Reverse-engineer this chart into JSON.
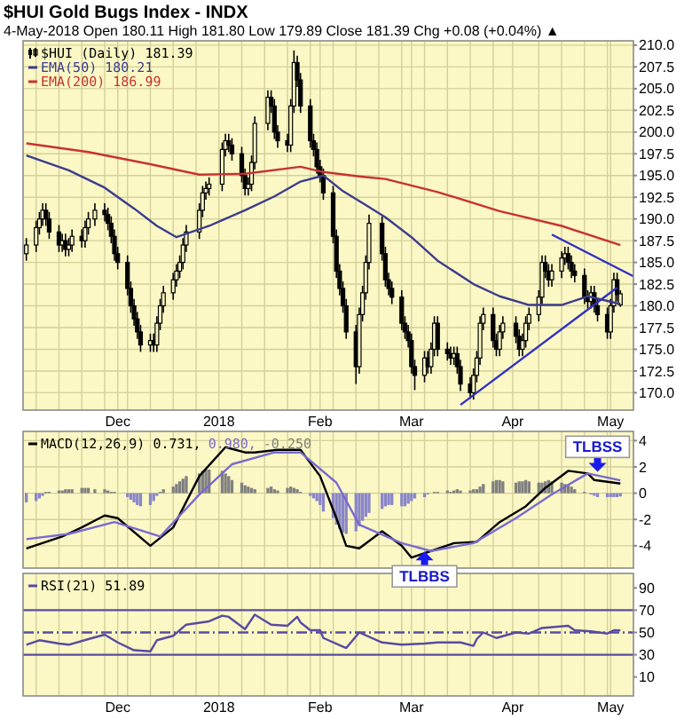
{
  "chart_data": [
    {
      "type": "candlestick",
      "title": "$HUI Gold Bugs Index - INDX",
      "subtitle": "4-May-2018  Open 180.11  High 181.80  Low 179.89  Close 181.39  Chg +0.08 (+0.04%) ▲",
      "grid": true,
      "legend": "top left",
      "xlim": [
        "2017-11-02",
        "2018-05-08"
      ],
      "ylim": [
        168,
        210.5
      ],
      "xticks": [
        {
          "value": "2017-11-06",
          "label": null
        },
        {
          "value": "2017-11-13",
          "label": null
        },
        {
          "value": "2017-11-20",
          "label": null
        },
        {
          "value": "2017-11-27",
          "label": null
        },
        {
          "value": "2017-12-01",
          "label": "Dec"
        },
        {
          "value": "2017-12-04",
          "label": null
        },
        {
          "value": "2017-12-11",
          "label": null
        },
        {
          "value": "2017-12-18",
          "label": null
        },
        {
          "value": "2017-12-25",
          "label": null
        },
        {
          "value": "2018-01-01",
          "label": "2018"
        },
        {
          "value": "2018-01-08",
          "label": null
        },
        {
          "value": "2018-01-15",
          "label": null
        },
        {
          "value": "2018-01-22",
          "label": null
        },
        {
          "value": "2018-01-29",
          "label": null
        },
        {
          "value": "2018-02-01",
          "label": "Feb"
        },
        {
          "value": "2018-02-05",
          "label": null
        },
        {
          "value": "2018-02-12",
          "label": null
        },
        {
          "value": "2018-02-19",
          "label": null
        },
        {
          "value": "2018-02-26",
          "label": null
        },
        {
          "value": "2018-03-01",
          "label": "Mar"
        },
        {
          "value": "2018-03-05",
          "label": null
        },
        {
          "value": "2018-03-12",
          "label": null
        },
        {
          "value": "2018-03-19",
          "label": null
        },
        {
          "value": "2018-03-26",
          "label": null
        },
        {
          "value": "2018-04-01",
          "label": "Apr"
        },
        {
          "value": "2018-04-09",
          "label": null
        },
        {
          "value": "2018-04-16",
          "label": null
        },
        {
          "value": "2018-04-23",
          "label": null
        },
        {
          "value": "2018-04-30",
          "label": null
        },
        {
          "value": "2018-05-01",
          "label": "May"
        }
      ],
      "yticks": [
        {
          "value": 170,
          "label": "170.0"
        },
        {
          "value": 172.5,
          "label": "172.5"
        },
        {
          "value": 175,
          "label": "175.0"
        },
        {
          "value": 177.5,
          "label": "177.5"
        },
        {
          "value": 180,
          "label": "180.0"
        },
        {
          "value": 182.5,
          "label": "182.5"
        },
        {
          "value": 185,
          "label": "185.0"
        },
        {
          "value": 187.5,
          "label": "187.5"
        },
        {
          "value": 190,
          "label": "190.0"
        },
        {
          "value": 192.5,
          "label": "192.5"
        },
        {
          "value": 195,
          "label": "195.0"
        },
        {
          "value": 197.5,
          "label": "197.5"
        },
        {
          "value": 200,
          "label": "200.0"
        },
        {
          "value": 202.5,
          "label": "202.5"
        },
        {
          "value": 205,
          "label": "205.0"
        },
        {
          "value": 207.5,
          "label": "207.5"
        },
        {
          "value": 210,
          "label": "210.0"
        }
      ],
      "x": [
        "2017-11-03",
        "2017-11-06",
        "2017-11-07",
        "2017-11-08",
        "2017-11-09",
        "2017-11-10",
        "2017-11-13",
        "2017-11-14",
        "2017-11-15",
        "2017-11-16",
        "2017-11-17",
        "2017-11-20",
        "2017-11-21",
        "2017-11-22",
        "2017-11-24",
        "2017-11-27",
        "2017-11-28",
        "2017-11-29",
        "2017-11-30",
        "2017-12-01",
        "2017-12-04",
        "2017-12-05",
        "2017-12-06",
        "2017-12-07",
        "2017-12-08",
        "2017-12-11",
        "2017-12-12",
        "2017-12-13",
        "2017-12-14",
        "2017-12-15",
        "2017-12-18",
        "2017-12-19",
        "2017-12-20",
        "2017-12-21",
        "2017-12-22",
        "2017-12-26",
        "2017-12-27",
        "2017-12-28",
        "2017-12-29",
        "2018-01-02",
        "2018-01-03",
        "2018-01-04",
        "2018-01-05",
        "2018-01-08",
        "2018-01-09",
        "2018-01-10",
        "2018-01-11",
        "2018-01-12",
        "2018-01-16",
        "2018-01-17",
        "2018-01-18",
        "2018-01-19",
        "2018-01-22",
        "2018-01-23",
        "2018-01-24",
        "2018-01-25",
        "2018-01-26",
        "2018-01-29",
        "2018-01-30",
        "2018-01-31",
        "2018-02-01",
        "2018-02-02",
        "2018-02-05",
        "2018-02-06",
        "2018-02-07",
        "2018-02-08",
        "2018-02-09",
        "2018-02-12",
        "2018-02-13",
        "2018-02-14",
        "2018-02-15",
        "2018-02-16",
        "2018-02-20",
        "2018-02-21",
        "2018-02-22",
        "2018-02-23",
        "2018-02-26",
        "2018-02-27",
        "2018-02-28",
        "2018-03-01",
        "2018-03-02",
        "2018-03-05",
        "2018-03-06",
        "2018-03-07",
        "2018-03-08",
        "2018-03-09",
        "2018-03-12",
        "2018-03-13",
        "2018-03-14",
        "2018-03-15",
        "2018-03-16",
        "2018-03-19",
        "2018-03-20",
        "2018-03-21",
        "2018-03-22",
        "2018-03-23",
        "2018-03-26",
        "2018-03-27",
        "2018-03-28",
        "2018-03-29",
        "2018-04-02",
        "2018-04-03",
        "2018-04-04",
        "2018-04-05",
        "2018-04-06",
        "2018-04-09",
        "2018-04-10",
        "2018-04-11",
        "2018-04-12",
        "2018-04-13",
        "2018-04-16",
        "2018-04-17",
        "2018-04-18",
        "2018-04-19",
        "2018-04-20",
        "2018-04-23",
        "2018-04-24",
        "2018-04-25",
        "2018-04-26",
        "2018-04-27",
        "2018-04-30",
        "2018-05-01",
        "2018-05-02",
        "2018-05-03",
        "2018-05-04"
      ],
      "series": [
        {
          "name": "$HUI (Daily) 181.39",
          "color": "#000000",
          "ohlc": [
            [
              186,
              187.8,
              185.2,
              187
            ],
            [
              187,
              189.8,
              186.2,
              189
            ],
            [
              189,
              190.8,
              188.2,
              190
            ],
            [
              190,
              191.8,
              189.2,
              191
            ],
            [
              191,
              191.8,
              189.2,
              190
            ],
            [
              190,
              190.8,
              187.7,
              188.5
            ],
            [
              188.5,
              189.3,
              186.2,
              187
            ],
            [
              187,
              188.3,
              186.2,
              187.5
            ],
            [
              187.5,
              188.3,
              185.7,
              186.5
            ],
            [
              186.5,
              187.8,
              185.7,
              187
            ],
            [
              187,
              188.8,
              186.2,
              188
            ],
            [
              188,
              188.8,
              186.7,
              187.5
            ],
            [
              187.5,
              189.8,
              186.7,
              189
            ],
            [
              189,
              190.8,
              188.2,
              190
            ],
            [
              190,
              191.8,
              189.2,
              191
            ],
            [
              191,
              191.8,
              189.7,
              190.5
            ],
            [
              190.5,
              191.3,
              188.7,
              189.5
            ],
            [
              189.5,
              190.3,
              187.2,
              188
            ],
            [
              188,
              188.8,
              185.2,
              186
            ],
            [
              186,
              186.8,
              184.2,
              185
            ],
            [
              185,
              185.8,
              181.2,
              182
            ],
            [
              182,
              182.8,
              179.2,
              180
            ],
            [
              180,
              180.8,
              177.7,
              178.5
            ],
            [
              178.5,
              179.3,
              176.2,
              177
            ],
            [
              177,
              177.8,
              174.7,
              175.5
            ],
            [
              175.5,
              176.8,
              174.7,
              176
            ],
            [
              176,
              176.8,
              174.7,
              175.5
            ],
            [
              175.5,
              178.8,
              174.7,
              178
            ],
            [
              178,
              180.8,
              177.2,
              180
            ],
            [
              180,
              182.3,
              179.2,
              181.5
            ],
            [
              181.5,
              183.8,
              180.7,
              183
            ],
            [
              183,
              184.8,
              182.2,
              184
            ],
            [
              184,
              185.8,
              183.2,
              185
            ],
            [
              185,
              187.8,
              184.2,
              187
            ],
            [
              187,
              189.3,
              186.2,
              188.5
            ],
            [
              188.5,
              191.8,
              187.7,
              191
            ],
            [
              191,
              193.8,
              190.2,
              193
            ],
            [
              193,
              194.3,
              192.2,
              193.5
            ],
            [
              193.5,
              194.8,
              192.7,
              194
            ],
            [
              194,
              198.8,
              193.2,
              198
            ],
            [
              198,
              199.8,
              197.2,
              199
            ],
            [
              199,
              199.8,
              197.7,
              198.5
            ],
            [
              198.5,
              199.3,
              196.7,
              197.5
            ],
            [
              197.5,
              198.3,
              194.2,
              195
            ],
            [
              195,
              195.8,
              192.7,
              193.5
            ],
            [
              193.5,
              194.8,
              192.7,
              194
            ],
            [
              194,
              197.3,
              193.2,
              196.5
            ],
            [
              196.5,
              201.8,
              195.7,
              201
            ],
            [
              201,
              204.8,
              200.2,
              204
            ],
            [
              204,
              204.8,
              202.2,
              203
            ],
            [
              203,
              203.8,
              199.2,
              200
            ],
            [
              200,
              200.8,
              198.2,
              199
            ],
            [
              199,
              199.8,
              197.7,
              198.5
            ],
            [
              198.5,
              203.8,
              197.7,
              203
            ],
            [
              203,
              209.4,
              202.2,
              208
            ],
            [
              208,
              208.8,
              205.2,
              206
            ],
            [
              206,
              206.8,
              202.2,
              203
            ],
            [
              203,
              203.8,
              198.2,
              199
            ],
            [
              199,
              199.8,
              197.2,
              198
            ],
            [
              198,
              198.8,
              195.2,
              196
            ],
            [
              196,
              196.8,
              194.2,
              195
            ],
            [
              195,
              195.8,
              192.2,
              193
            ],
            [
              193,
              193.8,
              187.2,
              188
            ],
            [
              188,
              188.8,
              183.2,
              184
            ],
            [
              184,
              184.8,
              181.2,
              182
            ],
            [
              182,
              182.8,
              179.2,
              180
            ],
            [
              180,
              180.8,
              176.2,
              177
            ],
            [
              177,
              177.8,
              171,
              173
            ],
            [
              173,
              179.8,
              172.2,
              179
            ],
            [
              179,
              182.3,
              178.2,
              181.5
            ],
            [
              181.5,
              185.8,
              180.7,
              185
            ],
            [
              185,
              190.5,
              184.2,
              189.5
            ],
            [
              189.5,
              190.3,
              185.2,
              186
            ],
            [
              186,
              186.8,
              182.2,
              183
            ],
            [
              183,
              183.8,
              181.2,
              182
            ],
            [
              182,
              182.8,
              180.2,
              181
            ],
            [
              181,
              181.8,
              177.2,
              178
            ],
            [
              178,
              178.8,
              176.2,
              177
            ],
            [
              177,
              177.8,
              175.2,
              176
            ],
            [
              176,
              176.8,
              172.2,
              173
            ],
            [
              173,
              173.8,
              170.3,
              172
            ],
            [
              172,
              174.8,
              171.2,
              174
            ],
            [
              174,
              174.8,
              172.2,
              173
            ],
            [
              173,
              175.8,
              172.2,
              175
            ],
            [
              175,
              178.8,
              174.2,
              178
            ],
            [
              178,
              178.8,
              174.2,
              175
            ],
            [
              175,
              175.8,
              173.7,
              174.5
            ],
            [
              174.5,
              175.3,
              173.2,
              174
            ],
            [
              174,
              175.3,
              173.2,
              174.5
            ],
            [
              174.5,
              175.3,
              172.2,
              173
            ],
            [
              173,
              173.8,
              170.2,
              171
            ],
            [
              171,
              171.8,
              169.3,
              170
            ],
            [
              170,
              172.8,
              169.2,
              172
            ],
            [
              172,
              174.8,
              171.2,
              174
            ],
            [
              174,
              178.8,
              173.2,
              178
            ],
            [
              178,
              179.8,
              177.2,
              179
            ],
            [
              179,
              179.8,
              175.2,
              176
            ],
            [
              176,
              176.8,
              174.2,
              175
            ],
            [
              175,
              177.8,
              174.2,
              177
            ],
            [
              177,
              178.8,
              176.2,
              178
            ],
            [
              178,
              178.8,
              175.7,
              176.5
            ],
            [
              176.5,
              177.3,
              174.2,
              175
            ],
            [
              175,
              176.8,
              174.2,
              176
            ],
            [
              176,
              178.8,
              175.2,
              178
            ],
            [
              178,
              179.8,
              177.2,
              179
            ],
            [
              179,
              181.8,
              178.2,
              181
            ],
            [
              181,
              185.8,
              180.2,
              185
            ],
            [
              185,
              185.8,
              183.2,
              184
            ],
            [
              184,
              184.8,
              182.2,
              183
            ],
            [
              183,
              184.8,
              182.2,
              184
            ],
            [
              184,
              186.3,
              183.2,
              185.5
            ],
            [
              185.5,
              186.8,
              184.7,
              186
            ],
            [
              186,
              186.8,
              184.2,
              185
            ],
            [
              185,
              185.8,
              183.2,
              184
            ],
            [
              184,
              184.8,
              182.7,
              183.5
            ],
            [
              183.5,
              184.3,
              180.2,
              181
            ],
            [
              181,
              181.8,
              179.7,
              180.5
            ],
            [
              180.5,
              182.3,
              179.7,
              181.5
            ],
            [
              181.5,
              182.3,
              179.2,
              180
            ],
            [
              180,
              180.8,
              178.2,
              179
            ],
            [
              179,
              179.8,
              176.2,
              177
            ],
            [
              177,
              180.8,
              176.2,
              180
            ],
            [
              180,
              183.8,
              179.2,
              183
            ],
            [
              183,
              183.8,
              180.5,
              181.3
            ],
            [
              180.11,
              181.8,
              179.89,
              181.39
            ]
          ]
        },
        {
          "name": "EMA(50) 180.21",
          "type": "line",
          "color": "#3c3c8c",
          "x": [
            "2017-11-03",
            "2017-11-16",
            "2017-11-27",
            "2017-12-06",
            "2017-12-13",
            "2017-12-19",
            "2017-12-29",
            "2018-01-09",
            "2018-01-18",
            "2018-01-26",
            "2018-02-02",
            "2018-02-08",
            "2018-02-15",
            "2018-02-21",
            "2018-03-01",
            "2018-03-09",
            "2018-03-20",
            "2018-03-28",
            "2018-04-06",
            "2018-04-16",
            "2018-04-24",
            "2018-05-04"
          ],
          "values": [
            197.3,
            195.6,
            193.6,
            191.2,
            189.2,
            187.9,
            189.2,
            191,
            192.6,
            194.3,
            195,
            193.2,
            191.6,
            190.2,
            187.9,
            185.2,
            182.5,
            181.1,
            180.1,
            180.1,
            181.1,
            180.21
          ]
        },
        {
          "name": "EMA(200) 186.99",
          "type": "line",
          "color": "#c83232",
          "x": [
            "2017-11-03",
            "2017-11-22",
            "2017-12-11",
            "2017-12-26",
            "2018-01-09",
            "2018-01-26",
            "2018-02-02",
            "2018-02-13",
            "2018-02-21",
            "2018-03-09",
            "2018-03-28",
            "2018-04-16",
            "2018-05-04"
          ],
          "values": [
            198.7,
            197.7,
            196.3,
            195.1,
            195.2,
            196,
            195.4,
            194.9,
            194.6,
            193.1,
            190.9,
            189.2,
            186.99
          ]
        },
        {
          "type": "line",
          "color": "#3030c0",
          "x": [
            "2018-03-16",
            "2018-05-03"
          ],
          "values": [
            168.6,
            182.1
          ]
        },
        {
          "type": "line",
          "color": "#3030c0",
          "x": [
            "2018-04-13",
            "2018-05-08"
          ],
          "values": [
            188.2,
            183.4
          ]
        }
      ]
    },
    {
      "type": "bar",
      "grid": true,
      "legend": "top left",
      "tick_labels": "y",
      "xlim": [
        "2017-11-02",
        "2018-05-08"
      ],
      "ylim": [
        -5.7,
        4.7
      ],
      "xticks": [
        "2017-11-06",
        "2017-11-13",
        "2017-11-20",
        "2017-11-27",
        "2017-12-01",
        "2017-12-04",
        "2017-12-11",
        "2017-12-18",
        "2017-12-25",
        "2018-01-01",
        "2018-01-08",
        "2018-01-15",
        "2018-01-22",
        "2018-01-29",
        "2018-02-01",
        "2018-02-05",
        "2018-02-12",
        "2018-02-19",
        "2018-02-26",
        "2018-03-01",
        "2018-03-05",
        "2018-03-12",
        "2018-03-19",
        "2018-03-26",
        "2018-04-01",
        "2018-04-09",
        "2018-04-16",
        "2018-04-23",
        "2018-04-30",
        "2018-05-01"
      ],
      "yticks": [
        -4,
        -2,
        0,
        2,
        4
      ],
      "x": [
        "2017-11-03",
        "2017-11-06",
        "2017-11-07",
        "2017-11-08",
        "2017-11-09",
        "2017-11-10",
        "2017-11-13",
        "2017-11-14",
        "2017-11-15",
        "2017-11-16",
        "2017-11-17",
        "2017-11-20",
        "2017-11-21",
        "2017-11-22",
        "2017-11-24",
        "2017-11-27",
        "2017-11-28",
        "2017-11-29",
        "2017-11-30",
        "2017-12-01",
        "2017-12-04",
        "2017-12-05",
        "2017-12-06",
        "2017-12-07",
        "2017-12-08",
        "2017-12-11",
        "2017-12-12",
        "2017-12-13",
        "2017-12-14",
        "2017-12-15",
        "2017-12-18",
        "2017-12-19",
        "2017-12-20",
        "2017-12-21",
        "2017-12-22",
        "2017-12-26",
        "2017-12-27",
        "2017-12-28",
        "2017-12-29",
        "2018-01-02",
        "2018-01-03",
        "2018-01-04",
        "2018-01-05",
        "2018-01-08",
        "2018-01-09",
        "2018-01-10",
        "2018-01-11",
        "2018-01-12",
        "2018-01-16",
        "2018-01-17",
        "2018-01-18",
        "2018-01-19",
        "2018-01-22",
        "2018-01-23",
        "2018-01-24",
        "2018-01-25",
        "2018-01-26",
        "2018-01-29",
        "2018-01-30",
        "2018-01-31",
        "2018-02-01",
        "2018-02-02",
        "2018-02-05",
        "2018-02-06",
        "2018-02-07",
        "2018-02-08",
        "2018-02-09",
        "2018-02-12",
        "2018-02-13",
        "2018-02-14",
        "2018-02-15",
        "2018-02-16",
        "2018-02-20",
        "2018-02-21",
        "2018-02-22",
        "2018-02-23",
        "2018-02-26",
        "2018-02-27",
        "2018-02-28",
        "2018-03-01",
        "2018-03-02",
        "2018-03-05",
        "2018-03-06",
        "2018-03-07",
        "2018-03-08",
        "2018-03-09",
        "2018-03-12",
        "2018-03-13",
        "2018-03-14",
        "2018-03-15",
        "2018-03-16",
        "2018-03-19",
        "2018-03-20",
        "2018-03-21",
        "2018-03-22",
        "2018-03-23",
        "2018-03-26",
        "2018-03-27",
        "2018-03-28",
        "2018-03-29",
        "2018-04-02",
        "2018-04-03",
        "2018-04-04",
        "2018-04-05",
        "2018-04-06",
        "2018-04-09",
        "2018-04-10",
        "2018-04-11",
        "2018-04-12",
        "2018-04-13",
        "2018-04-16",
        "2018-04-17",
        "2018-04-18",
        "2018-04-19",
        "2018-04-20",
        "2018-04-23",
        "2018-04-24",
        "2018-04-25",
        "2018-04-26",
        "2018-04-27",
        "2018-04-30",
        "2018-05-01",
        "2018-05-02",
        "2018-05-03",
        "2018-05-04"
      ],
      "series": [
        {
          "name": "MACD(12,26,9) 0.731,",
          "type": "line",
          "color": "#000000",
          "x": [
            "2017-11-03",
            "2017-11-14",
            "2017-11-20",
            "2017-11-27",
            "2017-12-01",
            "2017-12-11",
            "2017-12-18",
            "2017-12-26",
            "2018-01-03",
            "2018-01-09",
            "2018-01-12",
            "2018-01-19",
            "2018-01-26",
            "2018-02-01",
            "2018-02-06",
            "2018-02-09",
            "2018-02-13",
            "2018-02-20",
            "2018-02-26",
            "2018-03-01",
            "2018-03-07",
            "2018-03-14",
            "2018-03-21",
            "2018-03-28",
            "2018-04-05",
            "2018-04-11",
            "2018-04-18",
            "2018-04-24",
            "2018-04-26",
            "2018-05-04"
          ],
          "values": [
            -4.2,
            -3.3,
            -2.6,
            -1.7,
            -1.9,
            -4.0,
            -2.6,
            1.3,
            3.5,
            3.1,
            3.1,
            3.3,
            3.3,
            1.3,
            -1.9,
            -4.0,
            -4.2,
            -2.9,
            -4.0,
            -4.9,
            -4.4,
            -3.8,
            -3.7,
            -2.2,
            -1.0,
            0.4,
            1.7,
            1.5,
            1.0,
            0.731
          ]
        },
        {
          "name": "0.980,",
          "type": "line",
          "color": "#7a6ad0",
          "x": [
            "2017-11-03",
            "2017-11-16",
            "2017-11-30",
            "2017-12-14",
            "2017-12-26",
            "2018-01-05",
            "2018-01-18",
            "2018-01-26",
            "2018-02-06",
            "2018-02-13",
            "2018-02-26",
            "2018-03-07",
            "2018-03-20",
            "2018-04-02",
            "2018-04-13",
            "2018-04-24",
            "2018-05-04"
          ],
          "values": [
            -3.5,
            -3.1,
            -2.2,
            -3.3,
            -0.1,
            2.2,
            3.1,
            3.1,
            0.8,
            -2.4,
            -3.8,
            -4.4,
            -3.8,
            -1.9,
            -0.1,
            1.5,
            0.98
          ]
        },
        {
          "name": "-0.250",
          "color": "#808080",
          "values": [
            -0.7,
            -0.6,
            -0.4,
            -0.2,
            0.1,
            0.1,
            0.2,
            0.2,
            0.3,
            0.3,
            0.3,
            0.4,
            0.4,
            0.4,
            0.3,
            0.3,
            0.2,
            0.1,
            0.1,
            0.0,
            -0.3,
            -0.5,
            -0.7,
            -0.9,
            -1.0,
            -0.9,
            -0.6,
            -0.2,
            0.1,
            0.3,
            0.5,
            0.7,
            0.9,
            1.1,
            1.3,
            1.5,
            1.7,
            1.8,
            1.8,
            1.7,
            1.5,
            1.3,
            1.0,
            0.8,
            0.6,
            0.5,
            0.4,
            0.3,
            0.4,
            0.5,
            0.3,
            0.2,
            0.4,
            0.5,
            0.4,
            0.3,
            0.1,
            -0.2,
            -0.4,
            -0.6,
            -0.9,
            -1.4,
            -1.9,
            -2.4,
            -2.7,
            -3.0,
            -3.1,
            -2.9,
            -2.5,
            -2.1,
            -1.8,
            -1.5,
            -1.2,
            -1.0,
            -0.9,
            -0.9,
            -1.0,
            -1.0,
            -0.8,
            -0.6,
            -0.4,
            -0.3,
            -0.1,
            0.0,
            0.1,
            0.1,
            0.2,
            0.1,
            0.2,
            0.3,
            0.2,
            0.2,
            0.3,
            0.3,
            0.5,
            0.7,
            0.9,
            1.0,
            1.0,
            0.9,
            0.8,
            0.9,
            0.9,
            1.0,
            0.9,
            0.8,
            0.8,
            0.9,
            1.0,
            0.9,
            0.8,
            0.7,
            0.6,
            0.5,
            0.3,
            0.1,
            0.0,
            -0.1,
            -0.2,
            -0.3,
            -0.3,
            -0.3,
            -0.3,
            -0.3,
            -0.25
          ],
          "colors": [
            "#8a86c8",
            "#8a86c8",
            "#8a86c8",
            "#8a86c8",
            "#808080",
            "#808080",
            "#808080",
            "#808080",
            "#808080",
            "#808080",
            "#808080",
            "#808080",
            "#808080",
            "#808080",
            "#808080",
            "#808080",
            "#808080",
            "#808080",
            "#808080",
            "#808080",
            "#8a86c8",
            "#8a86c8",
            "#8a86c8",
            "#8a86c8",
            "#8a86c8",
            "#8a86c8",
            "#8a86c8",
            "#8a86c8",
            "#808080",
            "#808080",
            "#808080",
            "#808080",
            "#808080",
            "#808080",
            "#808080",
            "#808080",
            "#808080",
            "#808080",
            "#808080",
            "#808080",
            "#808080",
            "#808080",
            "#808080",
            "#808080",
            "#808080",
            "#808080",
            "#808080",
            "#808080",
            "#808080",
            "#808080",
            "#808080",
            "#808080",
            "#808080",
            "#808080",
            "#808080",
            "#808080",
            "#808080",
            "#8a86c8",
            "#8a86c8",
            "#8a86c8",
            "#8a86c8",
            "#8a86c8",
            "#8a86c8",
            "#8a86c8",
            "#8a86c8",
            "#8a86c8",
            "#8a86c8",
            "#8a86c8",
            "#8a86c8",
            "#8a86c8",
            "#8a86c8",
            "#8a86c8",
            "#8a86c8",
            "#8a86c8",
            "#8a86c8",
            "#8a86c8",
            "#8a86c8",
            "#8a86c8",
            "#8a86c8",
            "#8a86c8",
            "#8a86c8",
            "#8a86c8",
            "#8a86c8",
            "#808080",
            "#808080",
            "#808080",
            "#808080",
            "#808080",
            "#808080",
            "#808080",
            "#808080",
            "#808080",
            "#808080",
            "#808080",
            "#808080",
            "#808080",
            "#808080",
            "#808080",
            "#808080",
            "#808080",
            "#808080",
            "#808080",
            "#808080",
            "#808080",
            "#808080",
            "#808080",
            "#808080",
            "#808080",
            "#808080",
            "#808080",
            "#808080",
            "#808080",
            "#808080",
            "#808080",
            "#808080",
            "#808080",
            "#808080",
            "#8a86c8",
            "#8a86c8",
            "#8a86c8",
            "#8a86c8",
            "#8a86c8",
            "#8a86c8",
            "#8a86c8",
            "#8a86c8"
          ]
        }
      ],
      "annotations": [
        {
          "text": "TLBBS",
          "x": "2018-03-05",
          "y": -4.3
        },
        {
          "text": "TLBSS",
          "x": "2018-04-27",
          "y": 1.5
        }
      ]
    },
    {
      "type": "line",
      "grid": "x",
      "legend": "top left",
      "xlim": [
        "2017-11-02",
        "2018-05-08"
      ],
      "ylim": [
        -7,
        103
      ],
      "xticks": [
        {
          "value": "2017-11-06",
          "label": null
        },
        {
          "value": "2017-11-13",
          "label": null
        },
        {
          "value": "2017-11-20",
          "label": null
        },
        {
          "value": "2017-11-27",
          "label": null
        },
        {
          "value": "2017-12-01",
          "label": "Dec"
        },
        {
          "value": "2017-12-04",
          "label": null
        },
        {
          "value": "2017-12-11",
          "label": null
        },
        {
          "value": "2017-12-18",
          "label": null
        },
        {
          "value": "2017-12-25",
          "label": null
        },
        {
          "value": "2018-01-01",
          "label": "2018"
        },
        {
          "value": "2018-01-08",
          "label": null
        },
        {
          "value": "2018-01-15",
          "label": null
        },
        {
          "value": "2018-01-22",
          "label": null
        },
        {
          "value": "2018-01-29",
          "label": null
        },
        {
          "value": "2018-02-01",
          "label": "Feb"
        },
        {
          "value": "2018-02-05",
          "label": null
        },
        {
          "value": "2018-02-12",
          "label": null
        },
        {
          "value": "2018-02-19",
          "label": null
        },
        {
          "value": "2018-02-26",
          "label": null
        },
        {
          "value": "2018-03-01",
          "label": "Mar"
        },
        {
          "value": "2018-03-05",
          "label": null
        },
        {
          "value": "2018-03-12",
          "label": null
        },
        {
          "value": "2018-03-19",
          "label": null
        },
        {
          "value": "2018-03-26",
          "label": null
        },
        {
          "value": "2018-04-01",
          "label": "Apr"
        },
        {
          "value": "2018-04-09",
          "label": null
        },
        {
          "value": "2018-04-16",
          "label": null
        },
        {
          "value": "2018-04-23",
          "label": null
        },
        {
          "value": "2018-04-30",
          "label": null
        },
        {
          "value": "2018-05-01",
          "label": "May"
        }
      ],
      "yticks": [
        10,
        30,
        50,
        70,
        90
      ],
      "ref_lines": [
        {
          "axis": "y",
          "value": 70,
          "color": "#5a4aa0"
        },
        {
          "axis": "y",
          "value": 50,
          "color": "#5a4aa0",
          "line_style": "dashed"
        },
        {
          "axis": "y",
          "value": 30,
          "color": "#5a4aa0"
        }
      ],
      "series": [
        {
          "name": "RSI(21) 51.89",
          "color": "#5a4aa0",
          "x": [
            "2017-11-03",
            "2017-11-07",
            "2017-11-13",
            "2017-11-16",
            "2017-11-22",
            "2017-11-27",
            "2017-12-01",
            "2017-12-06",
            "2017-12-11",
            "2017-12-13",
            "2017-12-18",
            "2017-12-22",
            "2017-12-29",
            "2018-01-02",
            "2018-01-04",
            "2018-01-09",
            "2018-01-12",
            "2018-01-17",
            "2018-01-22",
            "2018-01-25",
            "2018-01-26",
            "2018-01-29",
            "2018-02-01",
            "2018-02-02",
            "2018-02-09",
            "2018-02-13",
            "2018-02-20",
            "2018-02-26",
            "2018-03-05",
            "2018-03-09",
            "2018-03-16",
            "2018-03-20",
            "2018-03-21",
            "2018-03-23",
            "2018-03-27",
            "2018-04-02",
            "2018-04-06",
            "2018-04-10",
            "2018-04-18",
            "2018-04-20",
            "2018-04-25",
            "2018-04-30",
            "2018-05-02",
            "2018-05-04"
          ],
          "values": [
            39,
            43,
            40,
            39,
            44,
            48,
            41,
            34,
            33,
            43,
            47,
            57,
            60,
            65,
            64,
            53,
            66,
            57,
            56,
            64,
            59,
            52,
            52,
            45,
            36,
            50,
            41,
            39,
            40,
            41,
            41,
            38,
            44,
            50,
            45,
            50,
            49,
            54,
            56,
            52,
            51,
            49,
            52,
            51.89
          ]
        }
      ]
    }
  ]
}
